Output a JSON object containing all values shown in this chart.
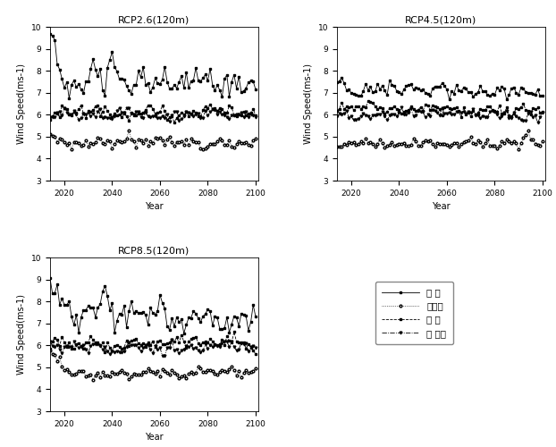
{
  "titles": [
    "RCP2.6(120m)",
    "RCP4.5(120m)",
    "RCP8.5(120m)"
  ],
  "xlabel": "Year",
  "ylabel": "Wind Speed(ms-1)",
  "xlim": [
    2014,
    2101
  ],
  "ylim": [
    3,
    10
  ],
  "xticks": [
    2020,
    2040,
    2060,
    2080,
    2100
  ],
  "yticks": [
    3,
    4,
    5,
    6,
    7,
    8,
    9,
    10
  ],
  "legend_labels": [
    "한 경",
    "대관령",
    "열 입",
    "서 남해"
  ],
  "background_color": "#ffffff",
  "rcp26": {
    "s1_mean": 7.5,
    "s1_noise": 0.55,
    "s1_seed": 101,
    "s2_mean": 4.75,
    "s2_noise": 0.22,
    "s2_seed": 102,
    "s3_mean": 6.1,
    "s3_noise": 0.28,
    "s3_seed": 103,
    "s4_mean": 6.0,
    "s4_noise": 0.25,
    "s4_seed": 104
  },
  "rcp45": {
    "s1_mean": 7.1,
    "s1_noise": 0.3,
    "s1_seed": 201,
    "s2_mean": 4.7,
    "s2_noise": 0.2,
    "s2_seed": 202,
    "s3_mean": 6.25,
    "s3_noise": 0.22,
    "s3_seed": 203,
    "s4_mean": 6.0,
    "s4_noise": 0.2,
    "s4_seed": 204
  },
  "rcp85": {
    "s1_mean": 7.3,
    "s1_noise": 0.55,
    "s1_seed": 301,
    "s2_mean": 4.75,
    "s2_noise": 0.18,
    "s2_seed": 302,
    "s3_mean": 6.1,
    "s3_noise": 0.28,
    "s3_seed": 303,
    "s4_mean": 5.9,
    "s4_noise": 0.22,
    "s4_seed": 304
  }
}
